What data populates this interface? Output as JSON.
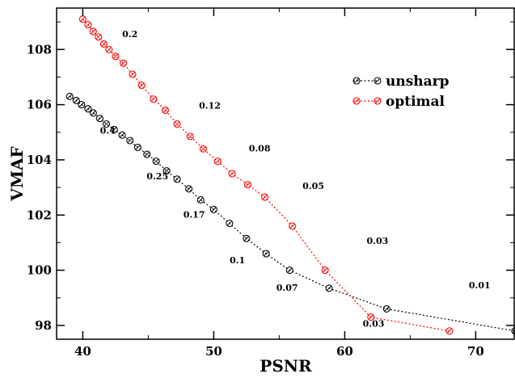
{
  "chart_data": {
    "type": "scatter",
    "title": "",
    "xlabel": "PSNR",
    "ylabel": "VMAF",
    "xlim": [
      38,
      73
    ],
    "ylim": [
      97.5,
      109.5
    ],
    "xticks": [
      40,
      50,
      60,
      70
    ],
    "yticks": [
      98,
      100,
      102,
      104,
      106,
      108
    ],
    "grid": false,
    "legend_position": "top-right",
    "series": [
      {
        "name": "unsharp",
        "color": "#000000",
        "marker": "circle-cross",
        "line": "dotted",
        "x": [
          39.0,
          39.5,
          39.9,
          40.4,
          40.8,
          41.3,
          41.8,
          42.4,
          43.0,
          43.6,
          44.2,
          44.9,
          45.6,
          46.4,
          47.2,
          48.1,
          49.0,
          50.0,
          51.2,
          52.5,
          54.0,
          55.8,
          58.8,
          63.2,
          73.0
        ],
        "y": [
          106.3,
          106.15,
          106.0,
          105.85,
          105.7,
          105.5,
          105.3,
          105.1,
          104.9,
          104.7,
          104.45,
          104.2,
          103.95,
          103.6,
          103.3,
          102.95,
          102.55,
          102.2,
          101.7,
          101.15,
          100.6,
          100.0,
          99.35,
          98.6,
          97.8
        ]
      },
      {
        "name": "optimal",
        "color": "#ff0000",
        "marker": "circle-cross",
        "line": "dotted",
        "x": [
          40.0,
          40.4,
          40.8,
          41.2,
          41.6,
          42.0,
          42.5,
          43.1,
          43.8,
          44.5,
          45.4,
          46.3,
          47.2,
          48.2,
          49.2,
          50.3,
          51.4,
          52.6,
          53.9,
          56.0,
          58.5,
          62.0,
          68.0
        ],
        "y": [
          109.1,
          108.9,
          108.65,
          108.45,
          108.2,
          108.0,
          107.75,
          107.5,
          107.1,
          106.7,
          106.2,
          105.8,
          105.3,
          104.85,
          104.4,
          103.95,
          103.5,
          103.1,
          102.65,
          101.6,
          100.0,
          98.3,
          97.8
        ]
      }
    ],
    "annotations": [
      {
        "text": "0.2",
        "x": 43.6,
        "y": 108.45
      },
      {
        "text": "0.12",
        "x": 49.7,
        "y": 105.85
      },
      {
        "text": "0.08",
        "x": 53.5,
        "y": 104.3
      },
      {
        "text": "0.05",
        "x": 57.6,
        "y": 102.95
      },
      {
        "text": "0.03",
        "x": 62.5,
        "y": 100.95
      },
      {
        "text": "0.01",
        "x": 70.3,
        "y": 99.35
      },
      {
        "text": "0.4",
        "x": 41.9,
        "y": 104.95
      },
      {
        "text": "0.25",
        "x": 45.7,
        "y": 103.3
      },
      {
        "text": "0.17",
        "x": 48.5,
        "y": 101.9
      },
      {
        "text": "0.1",
        "x": 51.8,
        "y": 100.25
      },
      {
        "text": "0.07",
        "x": 55.6,
        "y": 99.25
      },
      {
        "text": "0.03",
        "x": 62.2,
        "y": 97.95
      }
    ]
  }
}
